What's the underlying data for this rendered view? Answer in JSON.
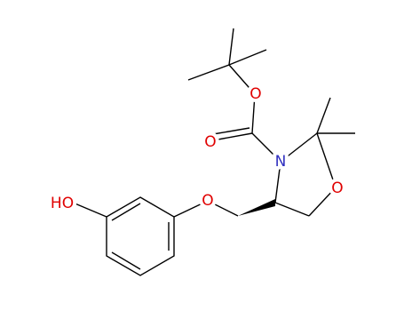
{
  "atoms": [
    {
      "label": "O"
    },
    {
      "label": "O"
    },
    {
      "label": "N"
    },
    {
      "label": "O"
    },
    {
      "label": "O"
    },
    {
      "label": "HO"
    }
  ]
}
